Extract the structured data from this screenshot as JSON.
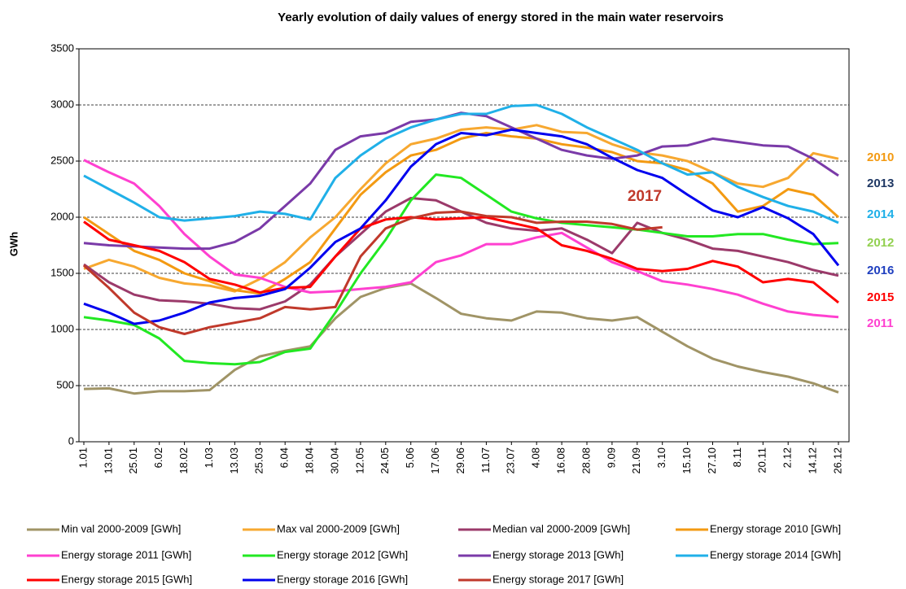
{
  "chart_data": {
    "type": "line",
    "title": "Yearly evolution of daily values of energy stored in the main water reservoirs",
    "y_label": "GWh",
    "categories": [
      "1.01",
      "13.01",
      "25.01",
      "6.02",
      "18.02",
      "1.03",
      "13.03",
      "25.03",
      "6.04",
      "18.04",
      "30.04",
      "12.05",
      "24.05",
      "5.06",
      "17.06",
      "29.06",
      "11.07",
      "23.07",
      "4.08",
      "16.08",
      "28.08",
      "9.09",
      "21.09",
      "3.10",
      "15.10",
      "27.10",
      "8.11",
      "20.11",
      "2.12",
      "14.12",
      "26.12"
    ],
    "ylim": [
      0,
      3500
    ],
    "yticks": [
      0,
      500,
      1000,
      1500,
      2000,
      2500,
      3000,
      3500
    ],
    "grid": true,
    "series": [
      {
        "name": "Min val 2000-2009 [GWh]",
        "color": "#a09466",
        "values": [
          470,
          475,
          430,
          450,
          450,
          460,
          640,
          760,
          810,
          850,
          1100,
          1290,
          1370,
          1410,
          1280,
          1140,
          1100,
          1080,
          1160,
          1150,
          1100,
          1080,
          1110,
          980,
          850,
          740,
          670,
          620,
          580,
          520,
          440
        ]
      },
      {
        "name": "Max val 2000-2009 [GWh]",
        "color": "#f7a830",
        "values": [
          1540,
          1620,
          1560,
          1460,
          1410,
          1390,
          1340,
          1450,
          1600,
          1820,
          2000,
          2250,
          2480,
          2650,
          2700,
          2780,
          2800,
          2780,
          2820,
          2760,
          2750,
          2650,
          2580,
          2550,
          2500,
          2400,
          2300,
          2270,
          2350,
          2570,
          2520
        ]
      },
      {
        "name": "Median val 2000-2009 [GWh]",
        "color": "#9b3a6a",
        "values": [
          1580,
          1420,
          1310,
          1260,
          1250,
          1230,
          1190,
          1180,
          1250,
          1400,
          1650,
          1850,
          2050,
          2170,
          2150,
          2050,
          1950,
          1900,
          1880,
          1900,
          1800,
          1680,
          1950,
          1860,
          1800,
          1720,
          1700,
          1650,
          1600,
          1530,
          1480
        ]
      },
      {
        "name": "Energy storage 2010 [GWh]",
        "color": "#f39a12",
        "values": [
          2000,
          1850,
          1700,
          1620,
          1500,
          1430,
          1350,
          1320,
          1450,
          1600,
          1900,
          2200,
          2400,
          2550,
          2600,
          2700,
          2750,
          2720,
          2700,
          2650,
          2620,
          2580,
          2500,
          2480,
          2420,
          2300,
          2050,
          2100,
          2250,
          2200,
          2000
        ]
      },
      {
        "name": "Energy storage 2011 [GWh]",
        "color": "#ff40d0",
        "values": [
          2510,
          2400,
          2300,
          2100,
          1850,
          1650,
          1490,
          1460,
          1380,
          1330,
          1340,
          1360,
          1380,
          1420,
          1600,
          1660,
          1760,
          1760,
          1820,
          1860,
          1730,
          1600,
          1520,
          1430,
          1400,
          1360,
          1310,
          1230,
          1160,
          1130,
          1110
        ]
      },
      {
        "name": "Energy storage 2012 [GWh]",
        "color": "#22e822",
        "values": [
          1110,
          1080,
          1040,
          920,
          720,
          700,
          690,
          710,
          800,
          830,
          1150,
          1500,
          1800,
          2150,
          2380,
          2350,
          2200,
          2050,
          1990,
          1950,
          1930,
          1910,
          1890,
          1860,
          1830,
          1830,
          1850,
          1850,
          1800,
          1760,
          1770
        ]
      },
      {
        "name": "Energy storage 2013 [GWh]",
        "color": "#7a3aa8",
        "values": [
          1770,
          1750,
          1740,
          1730,
          1720,
          1720,
          1780,
          1900,
          2100,
          2300,
          2600,
          2720,
          2750,
          2850,
          2870,
          2930,
          2900,
          2800,
          2700,
          2600,
          2550,
          2520,
          2550,
          2630,
          2640,
          2700,
          2670,
          2640,
          2630,
          2520,
          2370
        ]
      },
      {
        "name": "Energy storage 2014 [GWh]",
        "color": "#20b0e8",
        "values": [
          2370,
          2250,
          2130,
          2000,
          1970,
          1990,
          2010,
          2050,
          2030,
          1980,
          2350,
          2550,
          2700,
          2800,
          2870,
          2920,
          2920,
          2990,
          3000,
          2920,
          2800,
          2700,
          2600,
          2480,
          2380,
          2400,
          2270,
          2180,
          2100,
          2050,
          1950
        ]
      },
      {
        "name": "Energy storage 2015 [GWh]",
        "color": "#ff0000",
        "values": [
          1960,
          1800,
          1750,
          1700,
          1600,
          1450,
          1400,
          1330,
          1370,
          1380,
          1650,
          1900,
          1980,
          2000,
          1980,
          1990,
          2000,
          1950,
          1900,
          1750,
          1700,
          1630,
          1540,
          1520,
          1540,
          1610,
          1560,
          1420,
          1450,
          1420,
          1240
        ]
      },
      {
        "name": "Energy storage 2016 [GWh]",
        "color": "#0000ee",
        "values": [
          1230,
          1150,
          1050,
          1080,
          1150,
          1240,
          1280,
          1300,
          1360,
          1550,
          1780,
          1900,
          2150,
          2450,
          2650,
          2750,
          2730,
          2780,
          2750,
          2720,
          2650,
          2530,
          2420,
          2350,
          2200,
          2060,
          2000,
          2090,
          1990,
          1850,
          1570
        ]
      },
      {
        "name": "Energy storage 2017 [GWh]",
        "color": "#c0392b",
        "values": [
          1570,
          1370,
          1150,
          1020,
          960,
          1020,
          1060,
          1100,
          1200,
          1180,
          1200,
          1650,
          1900,
          1990,
          2040,
          2050,
          2010,
          2000,
          1950,
          1960,
          1960,
          1940,
          1890,
          1910,
          null,
          null,
          null,
          null,
          null,
          null,
          null
        ]
      }
    ],
    "annotations": [
      {
        "text": "2010",
        "color": "#f39a12"
      },
      {
        "text": "2013",
        "color": "#1f3864"
      },
      {
        "text": "2014",
        "color": "#20b0e8"
      },
      {
        "text": "2012",
        "color": "#92d050"
      },
      {
        "text": "2016",
        "color": "#1f3fbf"
      },
      {
        "text": "2015",
        "color": "#ff0000"
      },
      {
        "text": "2011",
        "color": "#ff40d0"
      },
      {
        "text": "2017",
        "color": "#c0392b"
      }
    ]
  }
}
